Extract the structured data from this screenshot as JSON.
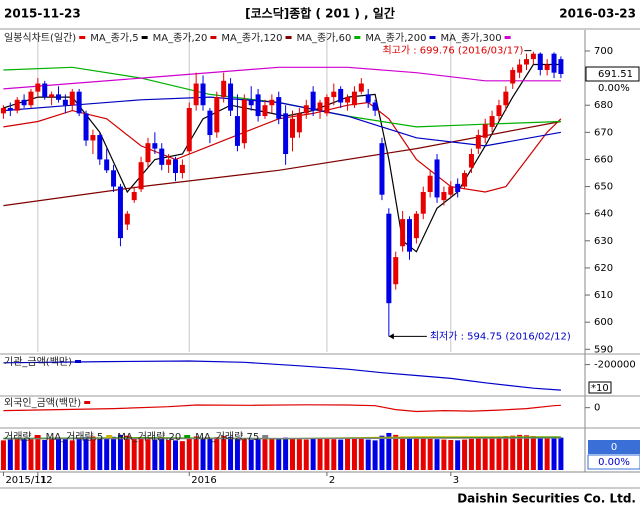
{
  "header": {
    "start": "2015-11-23",
    "title": "[코스닥]종합 ( 201 ) , 일간",
    "end": "2016-03-23"
  },
  "footer": "Daishin Securities Co. Ltd.",
  "chart_data": [
    {
      "type": "candlestick",
      "title": "일봉식차트(일간)",
      "open": [
        677,
        679,
        678,
        682,
        680,
        685,
        688,
        683,
        684,
        682,
        680,
        685,
        677,
        667,
        669,
        660,
        656,
        650,
        636,
        645,
        649,
        659,
        666,
        664,
        658,
        660,
        655,
        663,
        680,
        688,
        678,
        670,
        683,
        688,
        676,
        666,
        682,
        684,
        676,
        680,
        683,
        677,
        668,
        670,
        677,
        685,
        678,
        677,
        683,
        686,
        681,
        680,
        685,
        684,
        681,
        666,
        640,
        614,
        628,
        638,
        631,
        640,
        648,
        660,
        645,
        647,
        651,
        650,
        657,
        664,
        668,
        672,
        676,
        680,
        688,
        692,
        695,
        697,
        699,
        693,
        699,
        697
      ],
      "high": [
        680,
        681,
        683,
        684,
        686,
        690,
        689,
        685,
        687,
        684,
        686,
        686,
        678,
        671,
        670,
        664,
        658,
        651,
        641,
        650,
        661,
        668,
        670,
        666,
        662,
        661,
        660,
        681,
        692,
        691,
        679,
        685,
        692,
        690,
        684,
        684,
        687,
        686,
        682,
        684,
        685,
        680,
        678,
        679,
        682,
        687,
        682,
        684,
        688,
        687,
        684,
        687,
        690,
        686,
        682,
        668,
        642,
        626,
        641,
        639,
        641,
        650,
        656,
        662,
        650,
        652,
        653,
        656,
        664,
        671,
        675,
        678,
        682,
        687,
        694,
        697,
        699,
        699.76,
        699.5,
        697,
        699.5,
        698
      ],
      "low": [
        675,
        676,
        677,
        679,
        679,
        683,
        682,
        680,
        681,
        677,
        678,
        676,
        665,
        662,
        658,
        655,
        648,
        628,
        634,
        644,
        648,
        657,
        662,
        656,
        655,
        652,
        653,
        662,
        678,
        678,
        666,
        668,
        681,
        676,
        663,
        664,
        678,
        674,
        675,
        677,
        673,
        658,
        663,
        668,
        675,
        676,
        675,
        676,
        680,
        679,
        678,
        679,
        684,
        679,
        676,
        645,
        594.75,
        612,
        626,
        623,
        629,
        638,
        646,
        644,
        643,
        646,
        646,
        649,
        655,
        662,
        666,
        670,
        674,
        678,
        686,
        690,
        693,
        695,
        691,
        691,
        690,
        690
      ],
      "close": [
        679,
        678,
        682,
        680,
        685,
        688,
        683,
        684,
        682,
        680,
        685,
        677,
        667,
        669,
        660,
        656,
        650,
        631,
        640,
        648,
        659,
        666,
        664,
        658,
        660,
        655,
        658,
        679,
        688,
        680,
        669,
        683,
        689,
        678,
        665,
        682,
        680,
        676,
        680,
        682,
        675,
        662,
        675,
        677,
        680,
        678,
        681,
        683,
        685,
        681,
        683,
        685,
        688,
        681,
        678,
        647,
        607,
        624,
        638,
        626,
        640,
        648,
        654,
        646,
        648,
        650,
        648,
        655,
        662,
        669,
        673,
        676,
        680,
        685,
        693,
        695,
        697,
        699,
        693,
        695,
        692,
        691.51
      ],
      "up_color": "#e60000",
      "down_color": "#0000e6",
      "xlim": [
        -0.5,
        84.5
      ],
      "xticks": [
        {
          "value": 0,
          "label": "2015/11"
        },
        {
          "value": 5,
          "label": "12"
        },
        {
          "value": 27,
          "label": "2016"
        },
        {
          "value": 47,
          "label": "2"
        },
        {
          "value": 65,
          "label": "3"
        }
      ],
      "grid": true,
      "ylim": [
        589,
        707
      ],
      "yticks": [
        590,
        600,
        610,
        620,
        630,
        640,
        650,
        660,
        670,
        680,
        690,
        700
      ],
      "series": [
        {
          "name": "MA_종가,5",
          "color": "#000000",
          "x": [
            0,
            5,
            10,
            14,
            18,
            22,
            26,
            29,
            33,
            37,
            41,
            45,
            50,
            54,
            56,
            58,
            60,
            63,
            66,
            70,
            74,
            77,
            81
          ],
          "values": [
            679,
            683,
            683,
            670,
            648,
            660,
            662,
            675,
            680,
            678,
            676,
            678,
            683,
            684,
            660,
            630,
            626,
            642,
            648,
            665,
            683,
            695,
            695
          ]
        },
        {
          "name": "MA_종가,20",
          "color": "#d00000",
          "x": [
            0,
            5,
            10,
            15,
            20,
            25,
            30,
            35,
            40,
            45,
            50,
            53,
            56,
            60,
            65,
            70,
            73,
            76,
            79,
            81
          ],
          "values": [
            672,
            674,
            678,
            675,
            665,
            660,
            665,
            670,
            675,
            677,
            680,
            681,
            675,
            660,
            650,
            648,
            650,
            660,
            670,
            675
          ]
        },
        {
          "name": "MA_종가,120",
          "color": "#800000",
          "x": [
            0,
            20,
            40,
            60,
            81
          ],
          "values": [
            643,
            650,
            656,
            664,
            674
          ]
        },
        {
          "name": "MA_종가,60",
          "color": "#00b000",
          "x": [
            0,
            10,
            20,
            30,
            40,
            50,
            60,
            70,
            81
          ],
          "values": [
            693,
            694,
            690,
            684,
            681,
            676,
            672,
            673,
            674
          ]
        },
        {
          "name": "MA_종가,200",
          "color": "#0000c0",
          "x": [
            0,
            10,
            20,
            30,
            40,
            50,
            60,
            70,
            81
          ],
          "values": [
            678,
            680,
            682,
            683,
            681,
            676,
            668,
            665,
            670
          ]
        },
        {
          "name": "MA_종가,300",
          "color": "#d000d0",
          "x": [
            0,
            20,
            40,
            50,
            60,
            70,
            81
          ],
          "values": [
            686,
            690,
            694,
            694,
            692,
            689,
            689
          ]
        }
      ],
      "high_label": "최고가 : 699.76 (2016/03/17)",
      "low_label": "최저가 : 594.75 (2016/02/12)",
      "change_label": "0.00%"
    },
    {
      "type": "line",
      "title": "기관_금액(백만)",
      "color": "#0000cc",
      "x": [
        0,
        15,
        27,
        35,
        43,
        50,
        55,
        60,
        65,
        70,
        77,
        81
      ],
      "values": [
        -188000,
        -180000,
        -176000,
        -185000,
        -208000,
        -230000,
        -253000,
        -272000,
        -291000,
        -320000,
        -355000,
        -368000
      ],
      "ylim": [
        -400000,
        -150000
      ],
      "yticks": [
        -200000
      ],
      "unit_label": "*10"
    },
    {
      "type": "line",
      "title": "외국인_금액(백만)",
      "color": "#dd0000",
      "x": [
        0,
        8,
        16,
        24,
        28,
        36,
        44,
        50,
        54,
        57,
        60,
        64,
        68,
        72,
        76,
        80,
        81
      ],
      "values": [
        -30000,
        -20000,
        -10000,
        10000,
        28000,
        25000,
        30000,
        28000,
        20000,
        -20000,
        -40000,
        -30000,
        -35000,
        -25000,
        -10000,
        20000,
        25000
      ],
      "ylim": [
        -200000,
        100000
      ],
      "yticks": [
        0
      ]
    },
    {
      "type": "volume",
      "title": "거래량",
      "values": [
        760,
        780,
        800,
        820,
        790,
        810,
        770,
        800,
        830,
        790,
        760,
        800,
        840,
        860,
        820,
        800,
        850,
        900,
        880,
        820,
        810,
        790,
        780,
        800,
        770,
        760,
        740,
        820,
        860,
        830,
        800,
        840,
        870,
        850,
        820,
        800,
        780,
        790,
        810,
        820,
        800,
        830,
        810,
        790,
        780,
        800,
        820,
        810,
        790,
        780,
        800,
        820,
        810,
        780,
        760,
        880,
        950,
        900,
        860,
        850,
        830,
        820,
        800,
        790,
        780,
        770,
        760,
        780,
        800,
        820,
        830,
        850,
        860,
        870,
        880,
        900,
        890,
        870,
        860,
        840,
        850,
        830
      ],
      "ylim": [
        0,
        1000
      ],
      "series": [
        {
          "name": "MA_거래량,5",
          "color": "#c8b400",
          "x": [
            0,
            20,
            40,
            60,
            81
          ],
          "values": [
            800,
            830,
            800,
            850,
            850
          ]
        },
        {
          "name": "MA_거래량,20",
          "color": "#00a000",
          "x": [
            0,
            20,
            40,
            60,
            81
          ],
          "values": [
            810,
            820,
            805,
            820,
            840
          ]
        },
        {
          "name": "MA_거래량,75",
          "color": "#808080",
          "x": [
            0,
            20,
            40,
            60,
            81
          ],
          "values": [
            800,
            805,
            808,
            812,
            820
          ]
        }
      ],
      "last_label": "0",
      "change_label": "0.00%"
    }
  ]
}
